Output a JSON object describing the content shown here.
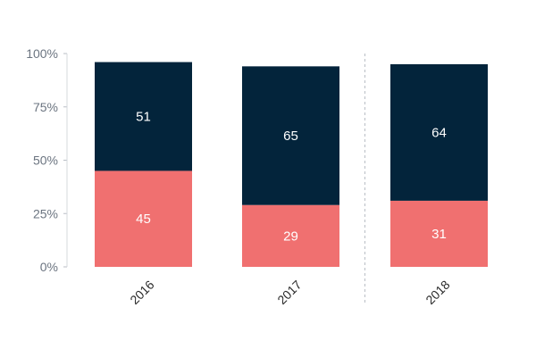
{
  "chart_data": {
    "type": "bar",
    "stacked": true,
    "categories": [
      "2016",
      "2017",
      "2018"
    ],
    "series": [
      {
        "values": [
          45,
          29,
          31
        ],
        "color": "#f07070"
      },
      {
        "values": [
          51,
          65,
          64
        ],
        "color": "#03243b"
      }
    ],
    "ylim": [
      0,
      100
    ],
    "y_ticks": [
      {
        "value": 0,
        "label": "0%"
      },
      {
        "value": 25,
        "label": "25%"
      },
      {
        "value": 50,
        "label": "50%"
      },
      {
        "value": 75,
        "label": "75%"
      },
      {
        "value": 100,
        "label": "100%"
      }
    ],
    "grid": false,
    "separator_before_category": "2018"
  }
}
